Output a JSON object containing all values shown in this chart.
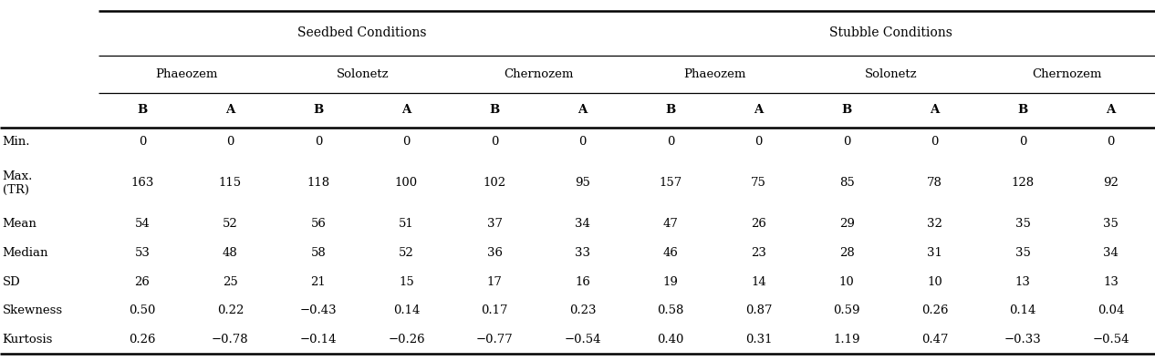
{
  "seedbed_header": "Seedbed Conditions",
  "stubble_header": "Stubble Conditions",
  "soil_headers": [
    "Phaeozem",
    "Solonetz",
    "Chernozem",
    "Phaeozem",
    "Solonetz",
    "Chernozem"
  ],
  "col_headers": [
    "B",
    "A",
    "B",
    "A",
    "B",
    "A",
    "B",
    "A",
    "B",
    "A",
    "B",
    "A"
  ],
  "row_labels": [
    "Min.",
    "Max.\n(TR)",
    "Mean",
    "Median",
    "SD",
    "Skewness",
    "Kurtosis"
  ],
  "data": [
    [
      "0",
      "0",
      "0",
      "0",
      "0",
      "0",
      "0",
      "0",
      "0",
      "0",
      "0",
      "0"
    ],
    [
      "163",
      "115",
      "118",
      "100",
      "102",
      "95",
      "157",
      "75",
      "85",
      "78",
      "128",
      "92"
    ],
    [
      "54",
      "52",
      "56",
      "51",
      "37",
      "34",
      "47",
      "26",
      "29",
      "32",
      "35",
      "35"
    ],
    [
      "53",
      "48",
      "58",
      "52",
      "36",
      "33",
      "46",
      "23",
      "28",
      "31",
      "35",
      "34"
    ],
    [
      "26",
      "25",
      "21",
      "15",
      "17",
      "16",
      "19",
      "14",
      "10",
      "10",
      "13",
      "13"
    ],
    [
      "0.50",
      "0.22",
      "−0.43",
      "0.14",
      "0.17",
      "0.23",
      "0.58",
      "0.87",
      "0.59",
      "0.26",
      "0.14",
      "0.04"
    ],
    [
      "0.26",
      "−0.78",
      "−0.14",
      "−0.26",
      "−0.77",
      "−0.54",
      "0.40",
      "0.31",
      "1.19",
      "0.47",
      "−0.33",
      "−0.54"
    ]
  ],
  "bg_color": "#ffffff",
  "text_color": "#000000",
  "line_color": "#000000",
  "lw_thick": 1.8,
  "lw_thin": 0.9,
  "fontsize_header1": 10,
  "fontsize_header2": 9.5,
  "fontsize_header3": 9.5,
  "fontsize_data": 9.5,
  "fontsize_rowlabel": 9.5
}
